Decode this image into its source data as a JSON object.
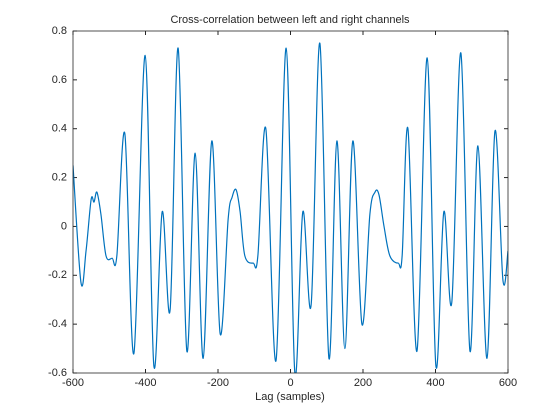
{
  "chart_data": {
    "type": "line",
    "title": "Cross-correlation between left and right channels",
    "xlabel": "Lag (samples)",
    "x": [
      -600,
      -578,
      -564,
      -550,
      -542,
      -534,
      -523,
      -509,
      -492,
      -479,
      -457,
      -432,
      -401,
      -377,
      -354,
      -332,
      -310,
      -286,
      -263,
      -241,
      -217,
      -194,
      -172,
      -161,
      -150,
      -139,
      -126,
      -103,
      -90,
      -68,
      -40,
      -12,
      12,
      34,
      57,
      81,
      106,
      128,
      150,
      172,
      197,
      219,
      233,
      244,
      258,
      274,
      297,
      308,
      324,
      349,
      377,
      401,
      423,
      445,
      470,
      495,
      517,
      542,
      564,
      586,
      600
    ],
    "series": [
      {
        "color": "#0072bd",
        "values": [
          0.25,
          -0.23,
          -0.1,
          0.11,
          0.1,
          0.14,
          0.05,
          -0.12,
          -0.13,
          -0.12,
          0.38,
          -0.52,
          0.7,
          -0.57,
          0.06,
          -0.34,
          0.73,
          -0.51,
          0.3,
          -0.54,
          0.35,
          -0.44,
          0.03,
          0.12,
          0.15,
          0.06,
          -0.12,
          -0.15,
          -0.12,
          0.4,
          -0.55,
          0.73,
          -0.6,
          0.06,
          -0.32,
          0.75,
          -0.54,
          0.35,
          -0.5,
          0.35,
          -0.4,
          0.05,
          0.14,
          0.13,
          0.0,
          -0.12,
          -0.15,
          -0.12,
          0.4,
          -0.51,
          0.69,
          -0.57,
          0.06,
          -0.31,
          0.71,
          -0.51,
          0.33,
          -0.54,
          0.39,
          -0.22,
          -0.1
        ]
      }
    ],
    "xlim": [
      -600,
      600
    ],
    "xticks": [
      -600,
      -400,
      -200,
      0,
      200,
      400,
      600
    ],
    "ylim": [
      -0.6,
      0.8
    ],
    "yticks": [
      -0.6,
      -0.4,
      -0.2,
      0,
      0.2,
      0.4,
      0.6,
      0.8
    ],
    "grid": false
  }
}
